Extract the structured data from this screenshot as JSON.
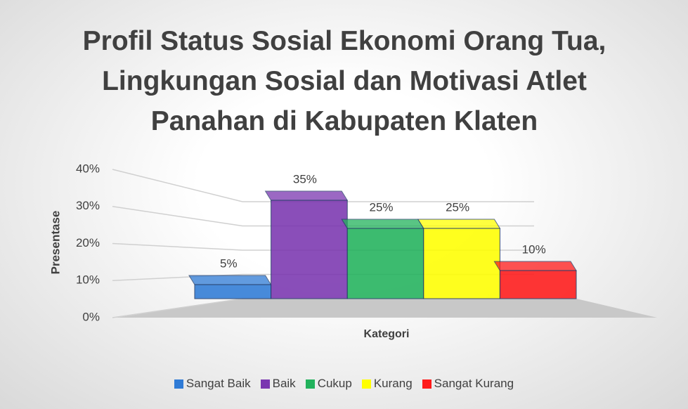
{
  "chart_data": {
    "type": "bar3d",
    "title": "Profil Status Sosial Ekonomi Orang Tua, Lingkungan Sosial dan Motivasi Atlet Panahan di Kabupaten Klaten",
    "x_label": "Kategori",
    "y_label": "Presentase",
    "series": [
      {
        "name": "Sangat Baik",
        "color": "#2f7bd6",
        "values": [
          5
        ],
        "value_labels": [
          "5%"
        ]
      },
      {
        "name": "Baik",
        "color": "#7a36b0",
        "values": [
          35
        ],
        "value_labels": [
          "35%"
        ]
      },
      {
        "name": "Cukup",
        "color": "#22b25c",
        "values": [
          25
        ],
        "value_labels": [
          "25%"
        ]
      },
      {
        "name": "Kurang",
        "color": "#ffff00",
        "values": [
          25
        ],
        "value_labels": [
          "25%"
        ]
      },
      {
        "name": "Sangat Kurang",
        "color": "#ff1a1a",
        "values": [
          10
        ],
        "value_labels": [
          "10%"
        ]
      }
    ],
    "ylim": [
      0,
      40
    ],
    "yticks": [
      {
        "value": 0,
        "label": "0%"
      },
      {
        "value": 10,
        "label": "10%"
      },
      {
        "value": 20,
        "label": "20%"
      },
      {
        "value": 30,
        "label": "30%"
      },
      {
        "value": 40,
        "label": "40%"
      }
    ],
    "grid": true,
    "legend": "bottom"
  }
}
